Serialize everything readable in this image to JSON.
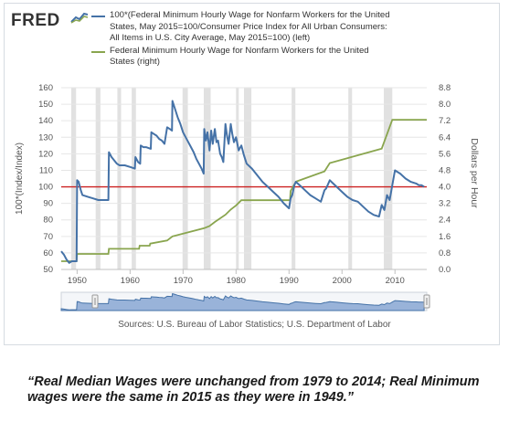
{
  "header": {
    "logo": "FRED",
    "legend": [
      {
        "label": "100*(Federal Minimum Hourly Wage for Nonfarm Workers for the United States, May 2015=100/Consumer Price Index for All Urban Consumers: All Items in U.S. City Average, May 2015=100) (left)",
        "color": "#4572a7"
      },
      {
        "label": "Federal Minimum Hourly Wage for Nonfarm Workers for the United States (right)",
        "color": "#89a54e"
      }
    ]
  },
  "source": "Sources: U.S. Bureau of Labor Statistics; U.S. Department of Labor",
  "quote": "“Real Median Wages were unchanged from 1979 to 2014; Real Minimum wages were the same in 2015 as they were in 1949.”",
  "colors": {
    "index_line": "#4572a7",
    "wage_line": "#89a54e",
    "reference_line": "#cc2222",
    "recession": "#e1e1e1",
    "navigator": "#99b3d9"
  },
  "chart_data": {
    "type": "line",
    "x_range": [
      1947,
      2016
    ],
    "x_ticks": [
      "1950",
      "1960",
      "1970",
      "1980",
      "1990",
      "2000",
      "2010"
    ],
    "y_left": {
      "label": "100*(Index/Index)",
      "range": [
        50,
        160
      ],
      "ticks": [
        "50",
        "60",
        "70",
        "80",
        "90",
        "100",
        "110",
        "120",
        "130",
        "140",
        "150",
        "160"
      ]
    },
    "y_right": {
      "label": "Dollars per Hour",
      "range": [
        0,
        8.8
      ],
      "ticks": [
        "0.0",
        "0.8",
        "1.6",
        "2.4",
        "3.2",
        "4.0",
        "4.8",
        "5.6",
        "6.4",
        "7.2",
        "8.0",
        "8.8"
      ]
    },
    "reference_line": 100,
    "recessions": [
      [
        1948.9,
        1949.8
      ],
      [
        1953.5,
        1954.4
      ],
      [
        1957.6,
        1958.3
      ],
      [
        1960.3,
        1961.1
      ],
      [
        1969.9,
        1970.9
      ],
      [
        1973.9,
        1975.2
      ],
      [
        1980.0,
        1980.5
      ],
      [
        1981.5,
        1982.9
      ],
      [
        1990.5,
        1991.2
      ],
      [
        2001.2,
        2001.9
      ],
      [
        2007.9,
        2009.5
      ]
    ],
    "series": [
      {
        "axis": "left",
        "points": [
          [
            1947.0,
            61
          ],
          [
            1947.5,
            59
          ],
          [
            1948.0,
            56
          ],
          [
            1948.5,
            54
          ],
          [
            1949.0,
            55
          ],
          [
            1949.9,
            55
          ],
          [
            1950.0,
            104
          ],
          [
            1950.3,
            103
          ],
          [
            1950.7,
            98
          ],
          [
            1951.0,
            95
          ],
          [
            1952.0,
            94
          ],
          [
            1953.0,
            93
          ],
          [
            1954.0,
            92
          ],
          [
            1955.0,
            92
          ],
          [
            1955.9,
            92
          ],
          [
            1956.0,
            121
          ],
          [
            1956.5,
            118
          ],
          [
            1957.0,
            116
          ],
          [
            1957.5,
            114
          ],
          [
            1958.0,
            113
          ],
          [
            1959.0,
            113
          ],
          [
            1960.0,
            112
          ],
          [
            1960.9,
            111
          ],
          [
            1961.0,
            118
          ],
          [
            1961.5,
            115
          ],
          [
            1961.9,
            114
          ],
          [
            1962.0,
            125
          ],
          [
            1962.5,
            124
          ],
          [
            1963.0,
            124
          ],
          [
            1963.9,
            123
          ],
          [
            1964.0,
            133
          ],
          [
            1964.5,
            132
          ],
          [
            1965.0,
            131
          ],
          [
            1965.5,
            129
          ],
          [
            1966.0,
            128
          ],
          [
            1966.5,
            126
          ],
          [
            1967.0,
            136
          ],
          [
            1967.5,
            135
          ],
          [
            1967.9,
            134
          ],
          [
            1968.0,
            152
          ],
          [
            1968.5,
            147
          ],
          [
            1969.0,
            142
          ],
          [
            1969.5,
            138
          ],
          [
            1970.0,
            133
          ],
          [
            1970.5,
            130
          ],
          [
            1971.0,
            127
          ],
          [
            1971.5,
            124
          ],
          [
            1972.0,
            121
          ],
          [
            1972.5,
            117
          ],
          [
            1973.0,
            114
          ],
          [
            1973.5,
            111
          ],
          [
            1973.9,
            108
          ],
          [
            1974.0,
            135
          ],
          [
            1974.3,
            128
          ],
          [
            1974.6,
            133
          ],
          [
            1975.0,
            122
          ],
          [
            1975.3,
            134
          ],
          [
            1975.6,
            126
          ],
          [
            1976.0,
            135
          ],
          [
            1976.3,
            127
          ],
          [
            1976.6,
            128
          ],
          [
            1977.0,
            120
          ],
          [
            1977.3,
            118
          ],
          [
            1977.6,
            115
          ],
          [
            1978.0,
            138
          ],
          [
            1978.3,
            131
          ],
          [
            1978.6,
            126
          ],
          [
            1979.0,
            138
          ],
          [
            1979.3,
            132
          ],
          [
            1979.6,
            127
          ],
          [
            1980.0,
            130
          ],
          [
            1980.5,
            122
          ],
          [
            1981.0,
            125
          ],
          [
            1981.5,
            119
          ],
          [
            1982.0,
            114
          ],
          [
            1983.0,
            111
          ],
          [
            1984.0,
            107
          ],
          [
            1985.0,
            103
          ],
          [
            1986.0,
            100
          ],
          [
            1987.0,
            97
          ],
          [
            1988.0,
            94
          ],
          [
            1989.0,
            90
          ],
          [
            1990.0,
            87
          ],
          [
            1990.3,
            93
          ],
          [
            1990.6,
            95
          ],
          [
            1991.0,
            101
          ],
          [
            1991.3,
            103
          ],
          [
            1992.0,
            101
          ],
          [
            1993.0,
            98
          ],
          [
            1994.0,
            95
          ],
          [
            1995.0,
            93
          ],
          [
            1996.0,
            91
          ],
          [
            1996.7,
            98
          ],
          [
            1997.0,
            99
          ],
          [
            1997.7,
            104
          ],
          [
            1998.0,
            103
          ],
          [
            1999.0,
            100
          ],
          [
            2000.0,
            97
          ],
          [
            2001.0,
            94
          ],
          [
            2002.0,
            92
          ],
          [
            2003.0,
            91
          ],
          [
            2004.0,
            88
          ],
          [
            2005.0,
            85
          ],
          [
            2006.0,
            83
          ],
          [
            2007.0,
            82
          ],
          [
            2007.5,
            89
          ],
          [
            2008.0,
            86
          ],
          [
            2008.5,
            95
          ],
          [
            2009.0,
            92
          ],
          [
            2009.5,
            101
          ],
          [
            2010.0,
            110
          ],
          [
            2011.0,
            108
          ],
          [
            2012.0,
            105
          ],
          [
            2013.0,
            103
          ],
          [
            2014.0,
            102
          ],
          [
            2014.5,
            101
          ],
          [
            2015.0,
            101
          ],
          [
            2015.5,
            100
          ]
        ]
      },
      {
        "axis": "right",
        "points": [
          [
            1947.0,
            0.4
          ],
          [
            1949.9,
            0.4
          ],
          [
            1950.0,
            0.75
          ],
          [
            1955.9,
            0.75
          ],
          [
            1956.0,
            1.0
          ],
          [
            1961.7,
            1.0
          ],
          [
            1961.8,
            1.15
          ],
          [
            1963.7,
            1.15
          ],
          [
            1963.8,
            1.25
          ],
          [
            1967.0,
            1.4
          ],
          [
            1968.0,
            1.6
          ],
          [
            1974.0,
            2.0
          ],
          [
            1975.0,
            2.1
          ],
          [
            1976.0,
            2.3
          ],
          [
            1978.0,
            2.65
          ],
          [
            1979.0,
            2.9
          ],
          [
            1980.0,
            3.1
          ],
          [
            1981.0,
            3.35
          ],
          [
            1990.2,
            3.35
          ],
          [
            1990.3,
            3.8
          ],
          [
            1991.3,
            4.25
          ],
          [
            1996.7,
            4.75
          ],
          [
            1997.7,
            5.15
          ],
          [
            2007.5,
            5.85
          ],
          [
            2008.5,
            6.55
          ],
          [
            2009.5,
            7.25
          ],
          [
            2016.0,
            7.25
          ]
        ]
      }
    ]
  }
}
